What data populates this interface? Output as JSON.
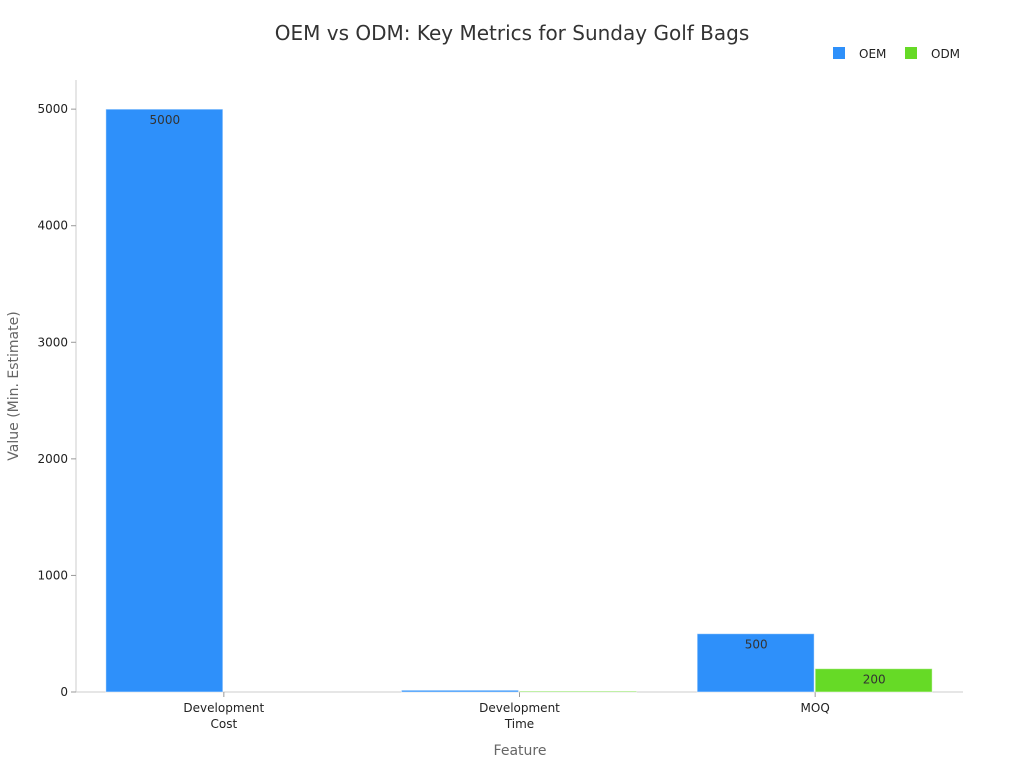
{
  "chart_data": {
    "type": "bar",
    "title": "OEM vs ODM: Key Metrics for Sunday Golf Bags",
    "xlabel": "Feature",
    "ylabel": "Value (Min. Estimate)",
    "categories": [
      [
        "Development",
        "Cost"
      ],
      [
        "Development",
        "Time"
      ],
      [
        "MOQ"
      ]
    ],
    "series": [
      {
        "name": "OEM",
        "color": "#2e90fa",
        "values": [
          5000,
          15,
          500
        ],
        "labels": [
          "5000",
          "",
          "500"
        ]
      },
      {
        "name": "ODM",
        "color": "#66da26",
        "values": [
          0,
          7,
          200
        ],
        "labels": [
          "",
          "",
          "200"
        ]
      }
    ],
    "ylim": [
      0,
      5250
    ],
    "yticks": [
      0,
      1000,
      2000,
      3000,
      4000,
      5000
    ],
    "grid": false,
    "legend": "top-right"
  }
}
